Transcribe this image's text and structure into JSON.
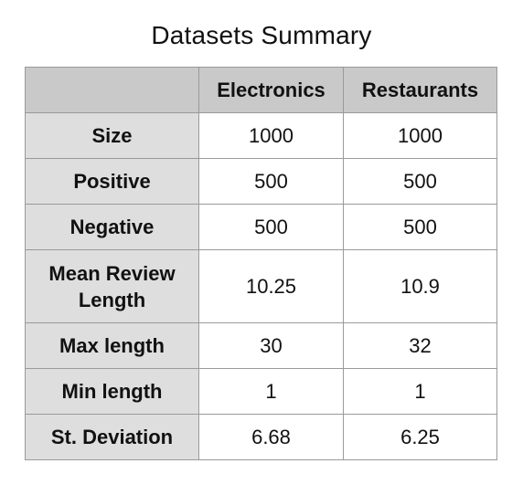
{
  "title": "Datasets Summary",
  "table": {
    "columns": [
      "",
      "Electronics",
      "Restaurants"
    ],
    "rows": [
      {
        "label": "Size",
        "values": [
          "1000",
          "1000"
        ]
      },
      {
        "label": "Positive",
        "values": [
          "500",
          "500"
        ]
      },
      {
        "label": "Negative",
        "values": [
          "500",
          "500"
        ]
      },
      {
        "label": "Mean Review Length",
        "values": [
          "10.25",
          "10.9"
        ]
      },
      {
        "label": "Max length",
        "values": [
          "30",
          "32"
        ]
      },
      {
        "label": "Min length",
        "values": [
          "1",
          "1"
        ]
      },
      {
        "label": "St. Deviation",
        "values": [
          "6.68",
          "6.25"
        ]
      }
    ]
  },
  "colors": {
    "header_background": "#c9c9c9",
    "row_header_background": "#dedede",
    "border": "#9a9a9a"
  }
}
